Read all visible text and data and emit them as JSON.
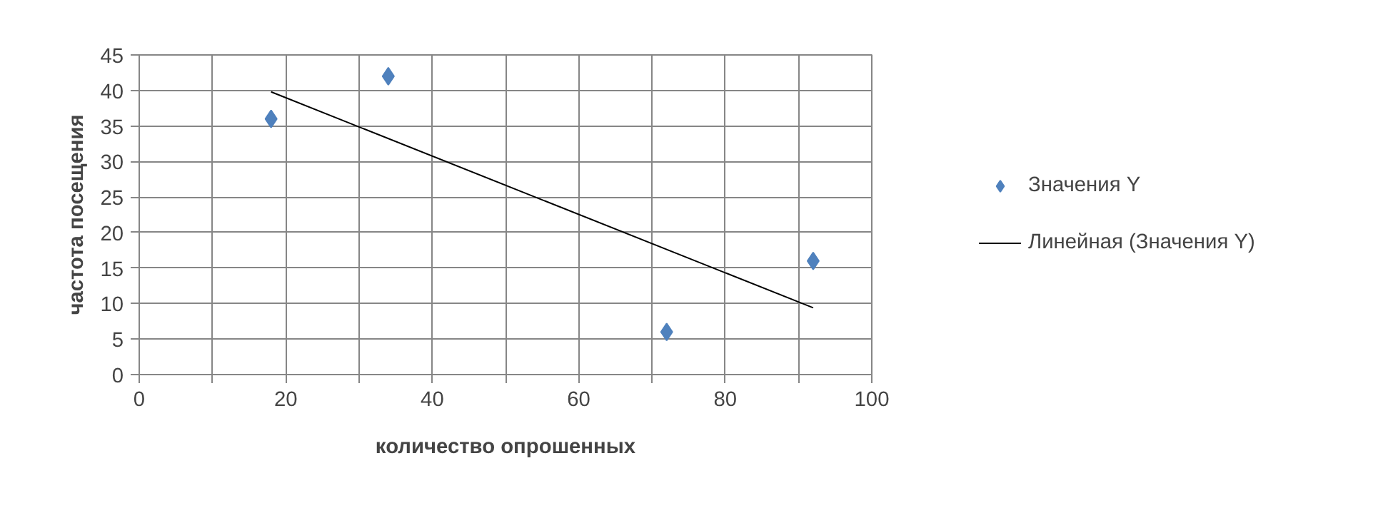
{
  "chart_data": {
    "type": "scatter",
    "xlabel": "количество опрошенных",
    "ylabel": "частота посещения",
    "series": [
      {
        "name": "Значения Y",
        "color": "#4f81bd",
        "marker": "diamond",
        "x": [
          18,
          34,
          72,
          92
        ],
        "values": [
          36,
          42,
          6,
          16
        ]
      },
      {
        "name": "Линейная (Значения Y)",
        "type": "line",
        "color": "#000000",
        "marker": "none",
        "x": [
          18,
          92
        ],
        "values": [
          39.8,
          9.4
        ]
      }
    ],
    "xlim": [
      0,
      100
    ],
    "ylim": [
      0,
      45
    ],
    "xticks": [
      0,
      {
        "value": 10,
        "label": null
      },
      20,
      {
        "value": 30,
        "label": null
      },
      40,
      {
        "value": 50,
        "label": null
      },
      60,
      {
        "value": 70,
        "label": null
      },
      80,
      {
        "value": 90,
        "label": null
      },
      100
    ],
    "yticks": [
      0,
      5,
      10,
      15,
      20,
      25,
      30,
      35,
      40,
      45
    ],
    "grid": true,
    "legend": "right"
  }
}
